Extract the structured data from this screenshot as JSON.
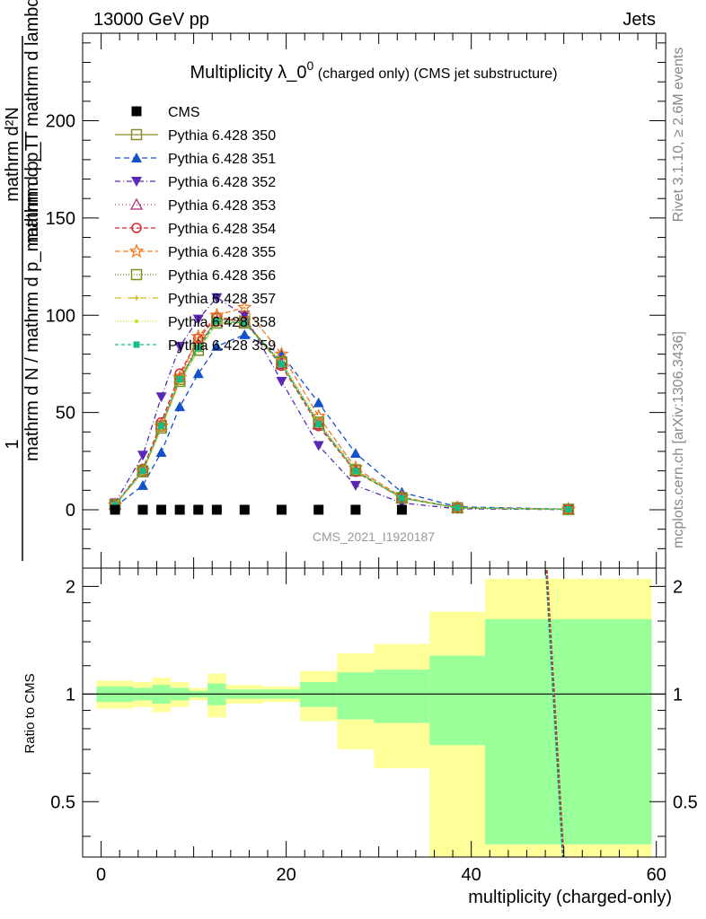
{
  "header": {
    "left": "13000 GeV pp",
    "right": "Jets"
  },
  "side_labels": {
    "rivet": "Rivet 3.1.10, ≥ 2.6M events",
    "mcplots": "mcplots.cern.ch [arXiv:1306.3436]"
  },
  "chart_data": [
    {
      "type": "line",
      "title": "Multiplicity λ_0",
      "title_sup": "0",
      "title_suffix": " (charged only) (CMS jet substructure)",
      "analysis_id": "CMS_2021_I1920187",
      "ylabel_numerator": "1",
      "ylabel_denominator": "mathrm d N / mathrm d p_mathrm d p_T",
      "ylabel_right": "mathrm d²N",
      "ylabel_right2": "mathrm d p_T mathrm d lambda",
      "xlim": [
        -2,
        61
      ],
      "ylim": [
        -30,
        245
      ],
      "yticks": [
        0,
        50,
        100,
        150,
        200
      ],
      "grid": false,
      "legend_position": "top-left",
      "x": [
        1.5,
        4.5,
        6.5,
        8.5,
        10.5,
        12.5,
        15.5,
        19.5,
        23.5,
        27.5,
        32.5,
        38.5,
        50.5
      ],
      "series": [
        {
          "name": "CMS",
          "color": "#000000",
          "marker": "square-filled",
          "dash": "none",
          "values": [
            0,
            0,
            0,
            0,
            0,
            0,
            0,
            0,
            0,
            0,
            0,
            0,
            0
          ]
        },
        {
          "name": "Pythia 6.428 350",
          "color": "#8b8b2e",
          "marker": "square-open",
          "dash": "solid",
          "values": [
            2.5,
            19.5,
            43,
            67,
            84,
            98,
            97,
            75,
            44,
            20,
            6,
            1,
            0.2
          ]
        },
        {
          "name": "Pythia 6.428 351",
          "color": "#1450c8",
          "marker": "triangle-up",
          "dash": "6,4",
          "values": [
            1.5,
            12.5,
            29.5,
            53,
            70,
            84,
            90,
            80,
            55,
            29,
            9,
            1.5,
            0.3
          ]
        },
        {
          "name": "Pythia 6.428 352",
          "color": "#5a28b4",
          "marker": "triangle-down",
          "dash": "6,3,1,3",
          "values": [
            3.5,
            28,
            58,
            84,
            98,
            109,
            100,
            66,
            33,
            12.5,
            3.5,
            0.5,
            0.1
          ]
        },
        {
          "name": "Pythia 6.428 353",
          "color": "#b4287a",
          "marker": "triangle-open",
          "dash": "1,3",
          "values": [
            2.6,
            20.5,
            44,
            68,
            85,
            97,
            96,
            75,
            44,
            20,
            6,
            1,
            0.2
          ]
        },
        {
          "name": "Pythia 6.428 354",
          "color": "#d2282a",
          "marker": "circle-open",
          "dash": "5,3",
          "values": [
            2.6,
            21,
            45,
            70,
            88,
            99,
            97,
            74,
            43,
            19.5,
            6,
            1,
            0.2
          ]
        },
        {
          "name": "Pythia 6.428 355",
          "color": "#f07820",
          "marker": "star-open",
          "dash": "6,3",
          "values": [
            2.5,
            20,
            43,
            68,
            89,
            100,
            104,
            80,
            48,
            21.5,
            6.5,
            1.1,
            0.2
          ]
        },
        {
          "name": "Pythia 6.428 356",
          "color": "#7a8c1e",
          "marker": "square-open",
          "dash": "1,2",
          "values": [
            2.6,
            20,
            42,
            66,
            82,
            96,
            96,
            76,
            45,
            20.5,
            6.2,
            1,
            0.2
          ]
        },
        {
          "name": "Pythia 6.428 357",
          "color": "#d2be14",
          "marker": "cross-small",
          "dash": "7,3,1,3",
          "values": [
            2.5,
            19.5,
            42,
            66,
            82,
            96,
            96,
            75,
            44,
            20,
            6,
            1,
            0.2
          ]
        },
        {
          "name": "Pythia 6.428 358",
          "color": "#c8dc1e",
          "marker": "dot",
          "dash": "1,2",
          "values": [
            2.5,
            19.5,
            42,
            66,
            82,
            96,
            96,
            75,
            44,
            20,
            6,
            1,
            0.2
          ]
        },
        {
          "name": "Pythia 6.428 359",
          "color": "#14be82",
          "marker": "square-filled-small",
          "dash": "4,3",
          "values": [
            2.6,
            20,
            43,
            67,
            83,
            97,
            96,
            75,
            44,
            20,
            6,
            1,
            0.2
          ]
        }
      ]
    },
    {
      "type": "area",
      "ylabel": "Ratio to CMS",
      "xlabel": "multiplicity (charged-only)",
      "xlim": [
        -2,
        61
      ],
      "ylim": [
        0.35,
        2.25
      ],
      "yticks": [
        0.5,
        1,
        2
      ],
      "xticks": [
        0,
        20,
        40,
        60
      ],
      "reference_line": 1,
      "bins": [
        {
          "lo": -0.5,
          "hi": 3.5,
          "inner": [
            0.95,
            1.05
          ],
          "outer": [
            0.91,
            1.09
          ]
        },
        {
          "lo": 3.5,
          "hi": 5.5,
          "inner": [
            0.96,
            1.04
          ],
          "outer": [
            0.92,
            1.08
          ]
        },
        {
          "lo": 5.5,
          "hi": 7.5,
          "inner": [
            0.94,
            1.06
          ],
          "outer": [
            0.89,
            1.11
          ]
        },
        {
          "lo": 7.5,
          "hi": 9.5,
          "inner": [
            0.96,
            1.04
          ],
          "outer": [
            0.92,
            1.08
          ]
        },
        {
          "lo": 9.5,
          "hi": 11.5,
          "inner": [
            0.98,
            1.02
          ],
          "outer": [
            0.96,
            1.04
          ]
        },
        {
          "lo": 11.5,
          "hi": 13.5,
          "inner": [
            0.93,
            1.07
          ],
          "outer": [
            0.86,
            1.14
          ]
        },
        {
          "lo": 13.5,
          "hi": 17.5,
          "inner": [
            0.97,
            1.03
          ],
          "outer": [
            0.94,
            1.06
          ]
        },
        {
          "lo": 17.5,
          "hi": 21.5,
          "inner": [
            0.97,
            1.03
          ],
          "outer": [
            0.95,
            1.05
          ]
        },
        {
          "lo": 21.5,
          "hi": 25.5,
          "inner": [
            0.92,
            1.08
          ],
          "outer": [
            0.84,
            1.16
          ]
        },
        {
          "lo": 25.5,
          "hi": 29.5,
          "inner": [
            0.85,
            1.15
          ],
          "outer": [
            0.7,
            1.3
          ]
        },
        {
          "lo": 29.5,
          "hi": 35.5,
          "inner": [
            0.83,
            1.17
          ],
          "outer": [
            0.62,
            1.38
          ]
        },
        {
          "lo": 35.5,
          "hi": 41.5,
          "inner": [
            0.72,
            1.28
          ],
          "outer": [
            0.3,
            1.7
          ]
        },
        {
          "lo": 41.5,
          "hi": 59.5,
          "inner": [
            0.38,
            1.62
          ],
          "outer": [
            0.3,
            2.1
          ]
        }
      ],
      "mc_ratio_lines": [
        [
          48.0,
          2.3
        ],
        [
          50.0,
          0.3
        ]
      ]
    }
  ]
}
